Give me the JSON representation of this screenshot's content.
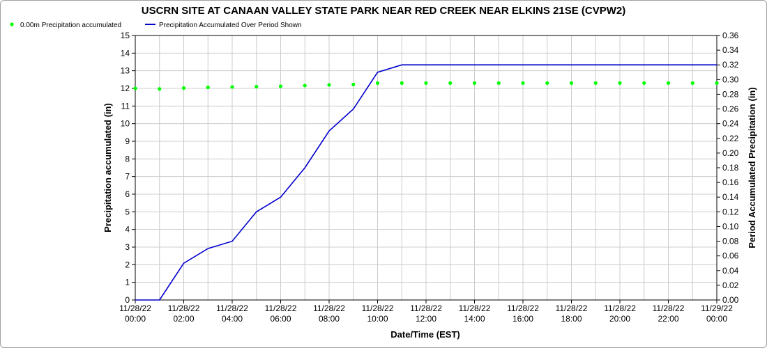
{
  "chart_data": {
    "type": "line",
    "title": "USCRN SITE AT CANAAN VALLEY STATE PARK NEAR RED CREEK NEAR ELKINS 21SE (CVPW2)",
    "xlabel": "Date/Time (EST)",
    "ylabel": "Precipitation accumulated (in)",
    "y2label": "Period Accumulated Precipitation (in)",
    "ylim": [
      0,
      15
    ],
    "y2lim": [
      0,
      0.36
    ],
    "xlim": [
      "11/28/22 00:00",
      "11/29/22 00:00"
    ],
    "grid": true,
    "legend_position": "top-left",
    "yticks": [
      "0",
      "1",
      "2",
      "3",
      "4",
      "5",
      "6",
      "7",
      "8",
      "9",
      "10",
      "11",
      "12",
      "13",
      "14",
      "15"
    ],
    "y2ticks": [
      "0.00",
      "0.02",
      "0.04",
      "0.06",
      "0.08",
      "0.10",
      "0.12",
      "0.14",
      "0.16",
      "0.18",
      "0.20",
      "0.22",
      "0.24",
      "0.26",
      "0.28",
      "0.30",
      "0.32",
      "0.34",
      "0.36"
    ],
    "xticks": [
      {
        "date": "11/28/22",
        "time": "00:00"
      },
      {
        "date": "11/28/22",
        "time": "02:00"
      },
      {
        "date": "11/28/22",
        "time": "04:00"
      },
      {
        "date": "11/28/22",
        "time": "06:00"
      },
      {
        "date": "11/28/22",
        "time": "08:00"
      },
      {
        "date": "11/28/22",
        "time": "10:00"
      },
      {
        "date": "11/28/22",
        "time": "12:00"
      },
      {
        "date": "11/28/22",
        "time": "14:00"
      },
      {
        "date": "11/28/22",
        "time": "16:00"
      },
      {
        "date": "11/28/22",
        "time": "18:00"
      },
      {
        "date": "11/28/22",
        "time": "20:00"
      },
      {
        "date": "11/28/22",
        "time": "22:00"
      },
      {
        "date": "11/29/22",
        "time": "00:00"
      }
    ],
    "series": [
      {
        "name": "0.00m Precipitation accumulated",
        "kind": "scatter",
        "axis": "left",
        "color": "#00ff00",
        "x": [
          "11/28/22 00:00",
          "11/28/22 01:00",
          "11/28/22 02:00",
          "11/28/22 03:00",
          "11/28/22 04:00",
          "11/28/22 05:00",
          "11/28/22 06:00",
          "11/28/22 07:00",
          "11/28/22 08:00",
          "11/28/22 09:00",
          "11/28/22 10:00",
          "11/28/22 11:00",
          "11/28/22 12:00",
          "11/28/22 13:00",
          "11/28/22 14:00",
          "11/28/22 15:00",
          "11/28/22 16:00",
          "11/28/22 17:00",
          "11/28/22 18:00",
          "11/28/22 19:00",
          "11/28/22 20:00",
          "11/28/22 21:00",
          "11/28/22 22:00",
          "11/28/22 23:00",
          "11/29/22 00:00"
        ],
        "values": [
          12.0,
          11.97,
          12.02,
          12.06,
          12.08,
          12.1,
          12.12,
          12.16,
          12.2,
          12.22,
          12.3,
          12.3,
          12.3,
          12.3,
          12.3,
          12.3,
          12.3,
          12.3,
          12.3,
          12.3,
          12.3,
          12.3,
          12.3,
          12.3,
          12.3
        ]
      },
      {
        "name": "Precipitation Accumulated Over Period Shown",
        "kind": "line",
        "axis": "right",
        "color": "#0000cc",
        "x": [
          "11/28/22 00:00",
          "11/28/22 01:00",
          "11/28/22 02:00",
          "11/28/22 03:00",
          "11/28/22 04:00",
          "11/28/22 05:00",
          "11/28/22 06:00",
          "11/28/22 07:00",
          "11/28/22 08:00",
          "11/28/22 09:00",
          "11/28/22 10:00",
          "11/28/22 11:00",
          "11/29/22 00:00"
        ],
        "values": [
          0.0,
          0.0,
          0.05,
          0.07,
          0.08,
          0.12,
          0.14,
          0.18,
          0.23,
          0.26,
          0.31,
          0.32,
          0.32
        ]
      }
    ]
  }
}
